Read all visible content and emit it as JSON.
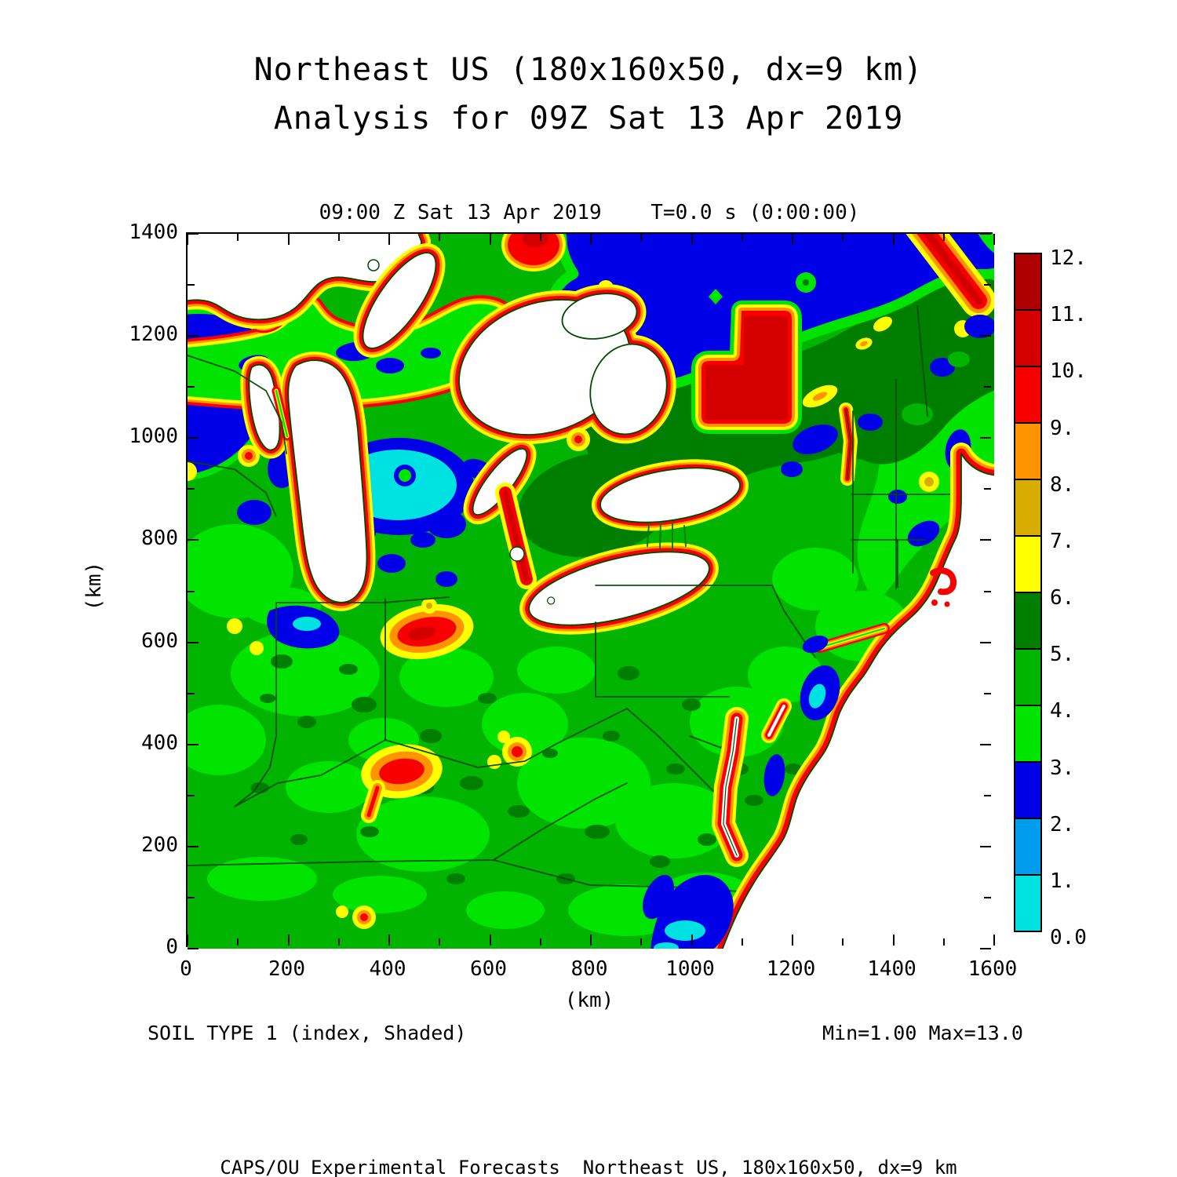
{
  "titles": {
    "line1": "Northeast US (180x160x50, dx=9 km)",
    "line2": "Analysis for 09Z Sat 13 Apr 2019"
  },
  "plot": {
    "header": "09:00 Z Sat 13 Apr 2019    T=0.0 s (0:00:00)"
  },
  "axes": {
    "x": {
      "label": "(km)",
      "range": [
        0,
        1600
      ],
      "major": [
        0,
        200,
        400,
        600,
        800,
        1000,
        1200,
        1400,
        1600
      ],
      "minor": [
        100,
        300,
        500,
        700,
        900,
        1100,
        1300,
        1500
      ]
    },
    "y": {
      "label": "(km)",
      "range": [
        0,
        1400
      ],
      "major": [
        0,
        200,
        400,
        600,
        800,
        1000,
        1200,
        1400
      ],
      "minor": [
        100,
        300,
        500,
        700,
        900,
        1100,
        1300
      ]
    }
  },
  "colorbar": {
    "labels": [
      "0.0",
      "1.",
      "2.",
      "3.",
      "4.",
      "5.",
      "6.",
      "7.",
      "8.",
      "9.",
      "10.",
      "11.",
      "12."
    ],
    "colors": [
      "#00E2E2",
      "#009CEE",
      "#0000E8",
      "#00E400",
      "#00B400",
      "#007E00",
      "#FFFF00",
      "#D8AC00",
      "#FF9400",
      "#F80000",
      "#D40000",
      "#AE0000"
    ]
  },
  "captions": {
    "left": "SOIL TYPE 1 (index, Shaded)",
    "right": "Min=1.00 Max=13.0"
  },
  "footer": "CAPS/OU Experimental Forecasts  Northeast US, 180x160x50, dx=9 km",
  "chart_data": {
    "type": "filled_contour_map",
    "title": "Northeast US (180x160x50, dx=9 km)",
    "subtitle": "Analysis for 09Z Sat 13 Apr 2019",
    "valid_time": "09:00 Z Sat 13 Apr 2019",
    "forecast_time": "T=0.0 s (0:00:00)",
    "field": "SOIL TYPE 1 (index, Shaded)",
    "min": 1.0,
    "max": 13.0,
    "xlabel": "(km)",
    "ylabel": "(km)",
    "xlim": [
      0,
      1600
    ],
    "ylim": [
      0,
      1400
    ],
    "x_ticks": [
      0,
      200,
      400,
      600,
      800,
      1000,
      1200,
      1400,
      1600
    ],
    "y_ticks": [
      0,
      200,
      400,
      600,
      800,
      1000,
      1200,
      1400
    ],
    "grid": "180x160x50",
    "dx": "9 km",
    "legend_position": "right",
    "levels": [
      0,
      1,
      2,
      3,
      4,
      5,
      6,
      7,
      8,
      9,
      10,
      11,
      12
    ],
    "level_colors": {
      "0-1": "#00E2E2",
      "1-2": "#009CEE",
      "2-3": "#0000E8",
      "3-4": "#00E400",
      "4-5": "#00B400",
      "5-6": "#007E00",
      "6-7": "#FFFF00",
      "7-8": "#D8AC00",
      "8-9": "#FF9400",
      "9-10": "#F80000",
      "10-11": "#D40000",
      "11-12": "#AE0000"
    },
    "notable_features": [
      "Great Lakes (Superior, Michigan, Huron, Erie, Ontario) masked white with red (soil 9-10) shoreline rings fading through orange and yellow to green inland",
      "Large blue region (soil type 2-3) across southern Canada / top of domain with dark green (5-6) band along its southern edge",
      "Large red/dark-red block (soil 10-12) embedded in the blue Canadian region near x=1050 km, y=1100 km",
      "Dark red streak along the St. Lawrence valley at the top right corner",
      "Light-blue/cyan (soil 1-2) patch in the center of Michigan's lower peninsula surrounded by blue ring",
      "Mostly green (soil 3-5) across Ohio valley, Kentucky, West Virginia and Virginia with scattered dark green blobs",
      "Red bullseyes with yellow-orange rings in southern Indiana/Ohio and south of Lake Erie (Toledo area)",
      "Atlantic ocean masked white with red-orange-yellow coastal soil bands, Chesapeake and Delaware bay channels, blue New Jersey pine-barrens patch",
      "White = water/out of range"
    ]
  }
}
